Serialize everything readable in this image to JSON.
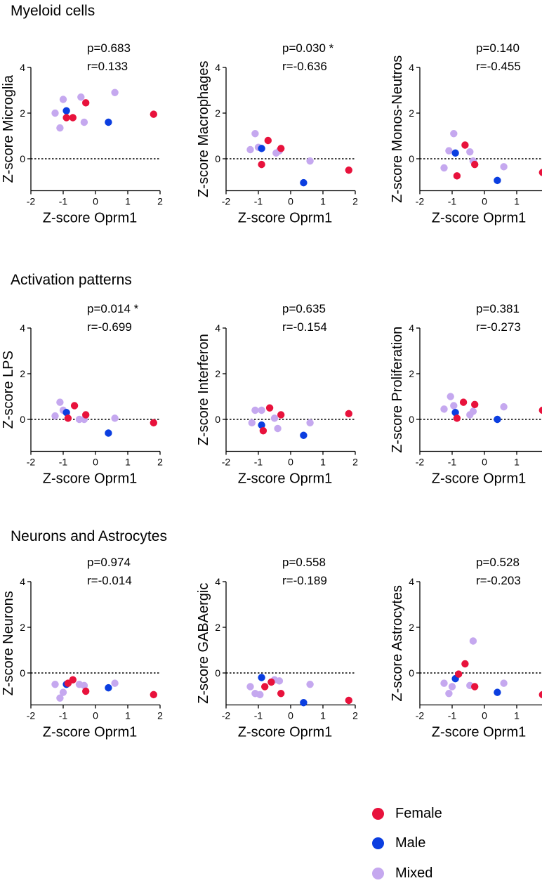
{
  "sections": [
    {
      "title": "Myeloid cells"
    },
    {
      "title": "Activation patterns"
    },
    {
      "title": "Neurons and Astrocytes"
    }
  ],
  "legend": [
    {
      "label": "Female",
      "color": "#e8123c"
    },
    {
      "label": "Male",
      "color": "#0b3ee0"
    },
    {
      "label": "Mixed",
      "color": "#c5a8ef"
    }
  ],
  "chart_data": [
    {
      "type": "scatter",
      "title": "",
      "xlabel": "Z-score Oprm1",
      "ylabel": "Z-score Microglia",
      "p_label": "p=0.683",
      "r_label": "r=0.133",
      "xlim": [
        -2,
        2
      ],
      "ylim": [
        -1.4,
        4
      ],
      "xticks": [
        "-2",
        "-1",
        "0",
        "1",
        "2"
      ],
      "yticks": [
        "0",
        "2",
        "4"
      ],
      "reference_line_y": 0,
      "series": [
        {
          "name": "Female",
          "points": [
            [
              -0.9,
              1.8
            ],
            [
              -0.7,
              1.8
            ],
            [
              -0.3,
              2.45
            ],
            [
              1.8,
              1.95
            ]
          ]
        },
        {
          "name": "Male",
          "points": [
            [
              -0.9,
              2.1
            ],
            [
              0.4,
              1.6
            ]
          ]
        },
        {
          "name": "Mixed",
          "points": [
            [
              -1.25,
              2.0
            ],
            [
              -1.1,
              1.35
            ],
            [
              -1.0,
              2.6
            ],
            [
              -0.45,
              2.7
            ],
            [
              -0.35,
              1.6
            ],
            [
              0.6,
              2.9
            ]
          ]
        }
      ]
    },
    {
      "type": "scatter",
      "title": "",
      "xlabel": "Z-score Oprm1",
      "ylabel": "Z-score Macrophages",
      "p_label": "p=0.030 *",
      "r_label": "r=-0.636",
      "xlim": [
        -2,
        2
      ],
      "ylim": [
        -1.4,
        4
      ],
      "xticks": [
        "-2",
        "-1",
        "0",
        "1",
        "2"
      ],
      "yticks": [
        "0",
        "2",
        "4"
      ],
      "reference_line_y": 0,
      "series": [
        {
          "name": "Female",
          "points": [
            [
              -0.9,
              -0.25
            ],
            [
              -0.7,
              0.8
            ],
            [
              -0.3,
              0.45
            ],
            [
              1.8,
              -0.5
            ]
          ]
        },
        {
          "name": "Male",
          "points": [
            [
              -0.9,
              0.45
            ],
            [
              0.4,
              -1.05
            ]
          ]
        },
        {
          "name": "Mixed",
          "points": [
            [
              -1.25,
              0.4
            ],
            [
              -1.1,
              1.1
            ],
            [
              -1.0,
              0.5
            ],
            [
              -0.45,
              0.25
            ],
            [
              -0.35,
              0.35
            ],
            [
              0.6,
              -0.1
            ]
          ]
        }
      ]
    },
    {
      "type": "scatter",
      "title": "",
      "xlabel": "Z-score Oprm1",
      "ylabel": "Z-score Monos-Neutros",
      "p_label": "p=0.140",
      "r_label": "r=-0.455",
      "xlim": [
        -2,
        2
      ],
      "ylim": [
        -1.4,
        4
      ],
      "xticks": [
        "-2",
        "-1",
        "0",
        "1",
        "2"
      ],
      "yticks": [
        "0",
        "2",
        "4"
      ],
      "reference_line_y": 0,
      "series": [
        {
          "name": "Female",
          "points": [
            [
              -0.85,
              -0.75
            ],
            [
              -0.6,
              0.6
            ],
            [
              -0.3,
              -0.25
            ],
            [
              1.8,
              -0.6
            ]
          ]
        },
        {
          "name": "Male",
          "points": [
            [
              -0.9,
              0.25
            ],
            [
              0.4,
              -0.95
            ]
          ]
        },
        {
          "name": "Mixed",
          "points": [
            [
              -1.25,
              -0.4
            ],
            [
              -1.1,
              0.35
            ],
            [
              -0.95,
              1.1
            ],
            [
              -0.45,
              0.3
            ],
            [
              -0.35,
              -0.1
            ],
            [
              0.6,
              -0.35
            ]
          ]
        }
      ]
    },
    {
      "type": "scatter",
      "title": "",
      "xlabel": "Z-score Oprm1",
      "ylabel": "Z-score LPS",
      "p_label": "p=0.014 *",
      "r_label": "r=-0.699",
      "xlim": [
        -2,
        2
      ],
      "ylim": [
        -1.4,
        4
      ],
      "xticks": [
        "-2",
        "-1",
        "0",
        "1",
        "2"
      ],
      "yticks": [
        "0",
        "2",
        "4"
      ],
      "reference_line_y": 0,
      "series": [
        {
          "name": "Female",
          "points": [
            [
              -0.85,
              0.05
            ],
            [
              -0.65,
              0.6
            ],
            [
              -0.3,
              0.2
            ],
            [
              1.8,
              -0.15
            ]
          ]
        },
        {
          "name": "Male",
          "points": [
            [
              -0.9,
              0.3
            ],
            [
              0.4,
              -0.6
            ]
          ]
        },
        {
          "name": "Mixed",
          "points": [
            [
              -1.25,
              0.15
            ],
            [
              -1.1,
              0.75
            ],
            [
              -1.0,
              0.4
            ],
            [
              -0.5,
              0.0
            ],
            [
              -0.35,
              0.0
            ],
            [
              0.6,
              0.05
            ]
          ]
        }
      ]
    },
    {
      "type": "scatter",
      "title": "",
      "xlabel": "Z-score Oprm1",
      "ylabel": "Z-score Interferon",
      "p_label": "p=0.635",
      "r_label": "r=-0.154",
      "xlim": [
        -2,
        2
      ],
      "ylim": [
        -1.4,
        4
      ],
      "xticks": [
        "-2",
        "-1",
        "0",
        "1",
        "2"
      ],
      "yticks": [
        "0",
        "2",
        "4"
      ],
      "reference_line_y": 0,
      "series": [
        {
          "name": "Female",
          "points": [
            [
              -0.85,
              -0.5
            ],
            [
              -0.65,
              0.5
            ],
            [
              -0.3,
              0.2
            ],
            [
              1.8,
              0.25
            ]
          ]
        },
        {
          "name": "Male",
          "points": [
            [
              -0.9,
              -0.25
            ],
            [
              0.4,
              -0.7
            ]
          ]
        },
        {
          "name": "Mixed",
          "points": [
            [
              -1.2,
              -0.15
            ],
            [
              -1.1,
              0.4
            ],
            [
              -0.9,
              0.4
            ],
            [
              -0.5,
              0.05
            ],
            [
              -0.4,
              -0.4
            ],
            [
              0.6,
              -0.15
            ]
          ]
        }
      ]
    },
    {
      "type": "scatter",
      "title": "",
      "xlabel": "Z-score Oprm1",
      "ylabel": "Z-score Proliferation",
      "p_label": "p=0.381",
      "r_label": "r=-0.273",
      "xlim": [
        -2,
        2
      ],
      "ylim": [
        -1.4,
        4
      ],
      "xticks": [
        "-2",
        "-1",
        "0",
        "1",
        "2"
      ],
      "yticks": [
        "0",
        "2",
        "4"
      ],
      "reference_line_y": 0,
      "series": [
        {
          "name": "Female",
          "points": [
            [
              -0.85,
              0.05
            ],
            [
              -0.65,
              0.75
            ],
            [
              -0.3,
              0.65
            ],
            [
              1.8,
              0.4
            ]
          ]
        },
        {
          "name": "Male",
          "points": [
            [
              -0.9,
              0.3
            ],
            [
              0.4,
              0.0
            ]
          ]
        },
        {
          "name": "Mixed",
          "points": [
            [
              -1.25,
              0.45
            ],
            [
              -1.05,
              1.0
            ],
            [
              -0.95,
              0.6
            ],
            [
              -0.45,
              0.2
            ],
            [
              -0.35,
              0.35
            ],
            [
              0.6,
              0.55
            ]
          ]
        }
      ]
    },
    {
      "type": "scatter",
      "title": "",
      "xlabel": "Z-score Oprm1",
      "ylabel": "Z-score Neurons",
      "p_label": "p=0.974",
      "r_label": "r=-0.014",
      "xlim": [
        -2,
        2
      ],
      "ylim": [
        -1.4,
        4
      ],
      "xticks": [
        "-2",
        "-1",
        "0",
        "1",
        "2"
      ],
      "yticks": [
        "0",
        "2",
        "4"
      ],
      "reference_line_y": 0,
      "series": [
        {
          "name": "Female",
          "points": [
            [
              -0.85,
              -0.45
            ],
            [
              -0.7,
              -0.3
            ],
            [
              -0.3,
              -0.8
            ],
            [
              1.8,
              -0.95
            ]
          ]
        },
        {
          "name": "Male",
          "points": [
            [
              -0.9,
              -0.5
            ],
            [
              0.4,
              -0.65
            ]
          ]
        },
        {
          "name": "Mixed",
          "points": [
            [
              -1.25,
              -0.5
            ],
            [
              -1.1,
              -1.1
            ],
            [
              -1.0,
              -0.85
            ],
            [
              -0.5,
              -0.5
            ],
            [
              -0.35,
              -0.55
            ],
            [
              0.6,
              -0.45
            ]
          ]
        }
      ]
    },
    {
      "type": "scatter",
      "title": "",
      "xlabel": "Z-score Oprm1",
      "ylabel": "Z-score GABAergic",
      "p_label": "p=0.558",
      "r_label": "r=-0.189",
      "xlim": [
        -2,
        2
      ],
      "ylim": [
        -1.4,
        4
      ],
      "xticks": [
        "-2",
        "-1",
        "0",
        "1",
        "2"
      ],
      "yticks": [
        "0",
        "2",
        "4"
      ],
      "reference_line_y": 0,
      "series": [
        {
          "name": "Female",
          "points": [
            [
              -0.8,
              -0.6
            ],
            [
              -0.6,
              -0.4
            ],
            [
              -0.3,
              -0.9
            ],
            [
              1.8,
              -1.2
            ]
          ]
        },
        {
          "name": "Male",
          "points": [
            [
              -0.9,
              -0.2
            ],
            [
              0.4,
              -1.3
            ]
          ]
        },
        {
          "name": "Mixed",
          "points": [
            [
              -1.25,
              -0.6
            ],
            [
              -1.1,
              -0.9
            ],
            [
              -0.95,
              -0.95
            ],
            [
              -0.5,
              -0.3
            ],
            [
              -0.35,
              -0.35
            ],
            [
              0.6,
              -0.5
            ]
          ]
        }
      ]
    },
    {
      "type": "scatter",
      "title": "",
      "xlabel": "Z-score Oprm1",
      "ylabel": "Z-score Astrocytes",
      "p_label": "p=0.528",
      "r_label": "r=-0.203",
      "xlim": [
        -2,
        2
      ],
      "ylim": [
        -1.4,
        4
      ],
      "xticks": [
        "-2",
        "-1",
        "0",
        "1",
        "2"
      ],
      "yticks": [
        "0",
        "2",
        "4"
      ],
      "reference_line_y": 0,
      "series": [
        {
          "name": "Female",
          "points": [
            [
              -0.8,
              -0.05
            ],
            [
              -0.6,
              0.4
            ],
            [
              -0.3,
              -0.6
            ],
            [
              1.8,
              -0.95
            ]
          ]
        },
        {
          "name": "Male",
          "points": [
            [
              -0.9,
              -0.25
            ],
            [
              0.4,
              -0.85
            ]
          ]
        },
        {
          "name": "Mixed",
          "points": [
            [
              -1.25,
              -0.45
            ],
            [
              -1.1,
              -0.9
            ],
            [
              -1.0,
              -0.6
            ],
            [
              -0.45,
              -0.55
            ],
            [
              -0.35,
              1.4
            ],
            [
              0.6,
              -0.45
            ]
          ]
        }
      ]
    }
  ]
}
